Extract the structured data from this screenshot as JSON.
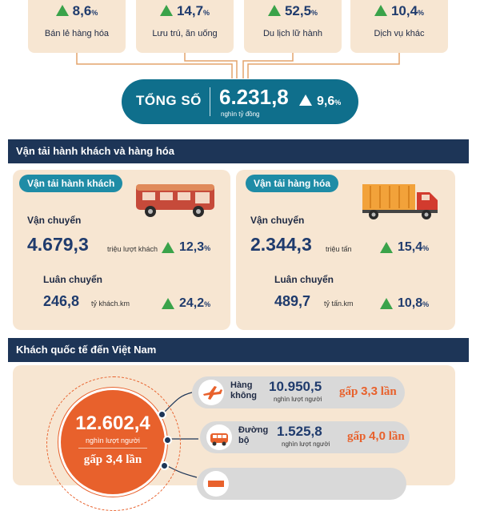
{
  "categories": [
    {
      "pct": "8,6",
      "pct_unit": "%",
      "name": "Bán lẻ hàng hóa"
    },
    {
      "pct": "14,7",
      "pct_unit": "%",
      "name": "Lưu trú, ăn uống"
    },
    {
      "pct": "52,5",
      "pct_unit": "%",
      "name": "Du lịch lữ hành"
    },
    {
      "pct": "10,4",
      "pct_unit": "%",
      "name": "Dịch vụ khác"
    }
  ],
  "total": {
    "label": "TỔNG SỐ",
    "value": "6.231,8",
    "unit": "nghìn tỷ đồng",
    "pct": "9,6",
    "pct_unit": "%"
  },
  "sections": {
    "transport": "Vận tải hành khách và hàng hóa",
    "intl": "Khách quốc tế đến Việt Nam"
  },
  "passenger": {
    "tag": "Vận tải hành khách",
    "carry_label": "Vận chuyển",
    "carry_value": "4.679,3",
    "carry_unit": "triệu lượt khách",
    "carry_pct": "12,3",
    "carry_pct_unit": "%",
    "rot_label": "Luân chuyển",
    "rot_value": "246,8",
    "rot_unit": "tỷ khách.km",
    "rot_pct": "24,2",
    "rot_pct_unit": "%"
  },
  "cargo": {
    "tag": "Vận tải hàng hóa",
    "carry_label": "Vận chuyển",
    "carry_value": "2.344,3",
    "carry_unit": "triệu tấn",
    "carry_pct": "15,4",
    "carry_pct_unit": "%",
    "rot_label": "Luân chuyển",
    "rot_value": "489,7",
    "rot_unit": "tỷ tấn.km",
    "rot_pct": "10,8",
    "rot_pct_unit": "%"
  },
  "intl": {
    "total_value": "12.602,4",
    "total_unit": "nghìn lượt người",
    "total_gap_prefix": "gấp",
    "total_gap_num": "3,4",
    "total_gap_suffix": "lần",
    "rows": [
      {
        "mode_1": "Hàng",
        "mode_2": "không",
        "value": "10.950,5",
        "unit": "nghìn lượt người",
        "gap_prefix": "gấp",
        "gap_num": "3,3",
        "gap_suffix": "lần",
        "icon": "airplane-icon"
      },
      {
        "mode_1": "Đường",
        "mode_2": "bộ",
        "value": "1.525,8",
        "unit": "nghìn lượt người",
        "gap_prefix": "gấp",
        "gap_num": "4,0",
        "gap_suffix": "lần",
        "icon": "car-icon"
      }
    ]
  },
  "colors": {
    "navy": "#1d3557",
    "teal": "#0f6f8c",
    "beige": "#f7e6d2",
    "green": "#3aa34a",
    "orange": "#e8612c",
    "connector": "#e3a36b"
  }
}
